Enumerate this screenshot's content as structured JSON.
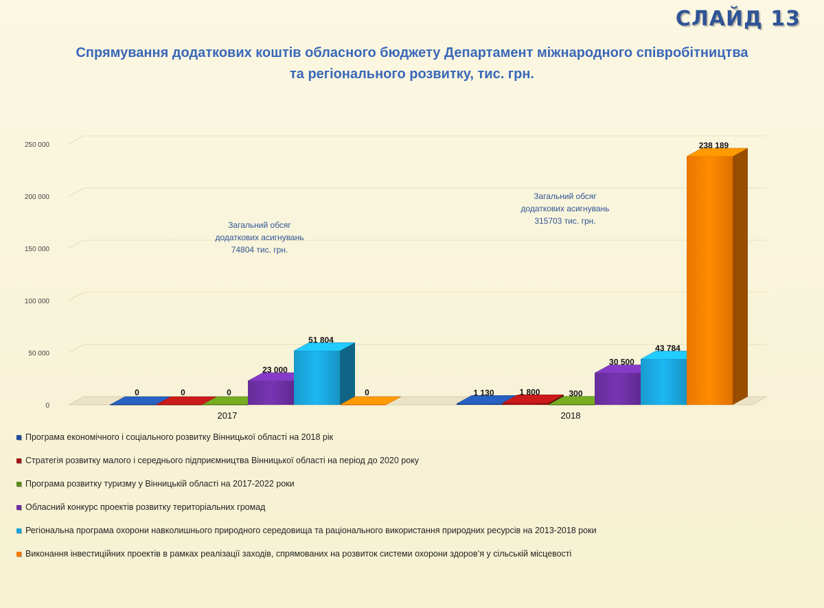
{
  "slide_label": "СЛАЙД 13",
  "chart_data": {
    "type": "bar",
    "title": "Спрямування додаткових коштів обласного бюджету Департамент міжнародного співробітництва та регіонального розвитку, тис. грн.",
    "categories": [
      "2017",
      "2018"
    ],
    "ylim": [
      0,
      250000
    ],
    "yticks": [
      0,
      50000,
      100000,
      150000,
      200000,
      250000
    ],
    "ytick_labels": [
      "0",
      "50 000",
      "100 000",
      "150 000",
      "200 000",
      "250 000"
    ],
    "grid": true,
    "legend_position": "bottom",
    "series": [
      {
        "name": "Програма економічного і соціального розвитку Вінницької області на 2018 рік",
        "color": "#1f4e9c",
        "values": [
          0,
          1130
        ],
        "labels": [
          "0",
          "1 130"
        ]
      },
      {
        "name": "Стратегія розвитку  малого і середнього підприємництва Вінницької області на період до 2020 року",
        "color": "#a31515",
        "values": [
          0,
          1800
        ],
        "labels": [
          "0",
          "1 800"
        ]
      },
      {
        "name": "Програма розвитку туризму у Вінницькій області на 2017-2022 роки",
        "color": "#5e8a1a",
        "values": [
          0,
          300
        ],
        "labels": [
          "0",
          "300"
        ]
      },
      {
        "name": "Обласний конкурс проектів розвитку територіальних громад",
        "color": "#6a2fa0",
        "values": [
          23000,
          30500
        ],
        "labels": [
          "23 000",
          "30 500"
        ]
      },
      {
        "name": "Регіональна програма охорони навколишнього природного середовища та раціонального використання природних ресурсів на 2013-2018 роки",
        "color": "#1aa3d9",
        "values": [
          51804,
          43784
        ],
        "labels": [
          "51 804",
          "43 784"
        ]
      },
      {
        "name": "Виконання інвестиційних проектів в рамках реалізації заходів, спрямованих на розвиток системи охорони здоров’я у сільській місцевості",
        "color": "#f57c00",
        "values": [
          0,
          238189
        ],
        "labels": [
          "0",
          "238 189"
        ]
      }
    ],
    "annotations": [
      {
        "group": "2017",
        "lines": [
          "Загальний обсяг",
          "додаткових асигнувань",
          "74804  тис. грн."
        ]
      },
      {
        "group": "2018",
        "lines": [
          "Загальний обсяг",
          "додаткових асигнувань",
          "315703 тис. грн."
        ]
      }
    ],
    "shown_series": [
      [
        0,
        1,
        2,
        3,
        4,
        5
      ],
      [
        0,
        1,
        2,
        3,
        4,
        5
      ]
    ]
  }
}
